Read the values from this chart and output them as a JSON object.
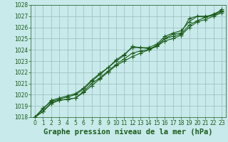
{
  "title": "Graphe pression niveau de la mer (hPa)",
  "background_color": "#c8eaea",
  "grid_color": "#9abcbc",
  "line_color": "#1a5c1a",
  "xlim": [
    -0.5,
    23.5
  ],
  "ylim": [
    1018,
    1028
  ],
  "xticks": [
    0,
    1,
    2,
    3,
    4,
    5,
    6,
    7,
    8,
    9,
    10,
    11,
    12,
    13,
    14,
    15,
    16,
    17,
    18,
    19,
    20,
    21,
    22,
    23
  ],
  "yticks": [
    1018,
    1019,
    1020,
    1021,
    1022,
    1023,
    1024,
    1025,
    1026,
    1027,
    1028
  ],
  "lines": [
    [
      1018.0,
      1018.8,
      1019.4,
      1019.6,
      1019.8,
      1020.0,
      1020.5,
      1021.2,
      1021.8,
      1022.4,
      1023.0,
      1023.5,
      1024.3,
      1024.2,
      1024.1,
      1024.3,
      1025.0,
      1025.4,
      1025.5,
      1026.8,
      1027.0,
      1027.0,
      1027.1,
      1027.6
    ],
    [
      1018.0,
      1018.5,
      1019.3,
      1019.5,
      1019.6,
      1019.7,
      1020.2,
      1020.8,
      1021.4,
      1022.0,
      1022.6,
      1023.0,
      1023.4,
      1023.7,
      1024.0,
      1024.3,
      1024.8,
      1025.0,
      1025.3,
      1026.0,
      1026.5,
      1026.7,
      1027.0,
      1027.3
    ],
    [
      1018.0,
      1018.7,
      1019.5,
      1019.7,
      1019.9,
      1020.1,
      1020.6,
      1021.3,
      1021.9,
      1022.4,
      1023.1,
      1023.6,
      1024.2,
      1024.2,
      1024.2,
      1024.5,
      1025.2,
      1025.5,
      1025.7,
      1026.5,
      1027.0,
      1026.9,
      1027.2,
      1027.5
    ],
    [
      1018.0,
      1018.5,
      1019.2,
      1019.5,
      1019.6,
      1019.7,
      1020.3,
      1021.0,
      1021.5,
      1022.1,
      1022.7,
      1023.2,
      1023.7,
      1023.9,
      1024.0,
      1024.4,
      1025.0,
      1025.2,
      1025.4,
      1026.2,
      1026.6,
      1026.9,
      1027.1,
      1027.4
    ]
  ],
  "marker": "+",
  "markersize": 4.0,
  "linewidth": 0.8,
  "tick_fontsize": 5.5,
  "title_fontsize": 7.5,
  "fig_width": 3.2,
  "fig_height": 2.0,
  "dpi": 100
}
